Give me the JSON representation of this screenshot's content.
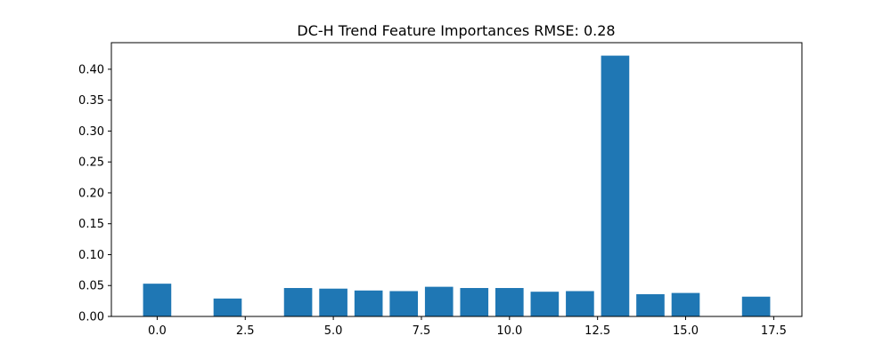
{
  "chart_data": {
    "type": "bar",
    "title": "DC-H Trend Feature Importances RMSE: 0.28",
    "xlabel": "",
    "ylabel": "",
    "x": [
      0,
      1,
      2,
      3,
      4,
      5,
      6,
      7,
      8,
      9,
      10,
      11,
      12,
      13,
      14,
      15,
      16,
      17
    ],
    "values": [
      0.053,
      0.0,
      0.029,
      0.0,
      0.046,
      0.045,
      0.042,
      0.041,
      0.048,
      0.046,
      0.046,
      0.04,
      0.041,
      0.422,
      0.036,
      0.038,
      0.0,
      0.032
    ],
    "xlim": [
      -1.3,
      18.3
    ],
    "ylim": [
      0,
      0.443
    ],
    "xticks": [
      0,
      2.5,
      5,
      7.5,
      10,
      12.5,
      15,
      17.5
    ],
    "xtick_labels": [
      "0.0",
      "2.5",
      "5.0",
      "7.5",
      "10.0",
      "12.5",
      "15.0",
      "17.5"
    ],
    "yticks": [
      0,
      0.05,
      0.1,
      0.15,
      0.2,
      0.25,
      0.3,
      0.35,
      0.4
    ],
    "ytick_labels": [
      "0.00",
      "0.05",
      "0.10",
      "0.15",
      "0.20",
      "0.25",
      "0.30",
      "0.35",
      "0.40"
    ],
    "bar_color": "#1f77b4",
    "grid": false,
    "legend": "none"
  }
}
